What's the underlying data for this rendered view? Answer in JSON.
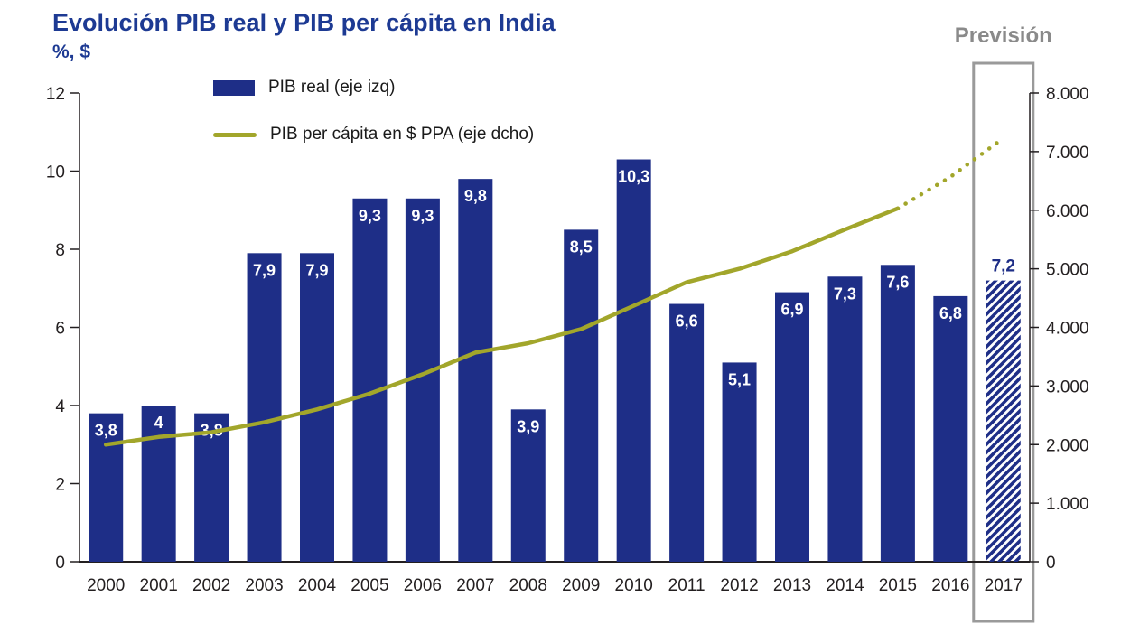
{
  "chart_data": {
    "type": "combo",
    "title": "Evolución PIB real y PIB per cápita en India",
    "subtitle": "%, $",
    "forecast": {
      "label": "Previsión",
      "category": "2017"
    },
    "legend_position": "top-left-inside",
    "grid": false,
    "categories": [
      "2000",
      "2001",
      "2002",
      "2003",
      "2004",
      "2005",
      "2006",
      "2007",
      "2008",
      "2009",
      "2010",
      "2011",
      "2012",
      "2013",
      "2014",
      "2015",
      "2016",
      "2017"
    ],
    "series": [
      {
        "name": "PIB real (eje izq)",
        "type": "bar",
        "axis": "left",
        "color": "#1e2e87",
        "values": [
          3.8,
          4,
          3.8,
          7.9,
          7.9,
          9.3,
          9.3,
          9.8,
          3.9,
          8.5,
          10.3,
          6.6,
          5.1,
          6.9,
          7.3,
          7.6,
          6.8,
          7.2
        ],
        "labels": [
          "3,8",
          "4",
          "3,8",
          "7,9",
          "7,9",
          "9,3",
          "9,3",
          "9,8",
          "3,9",
          "8,5",
          "10,3",
          "6,6",
          "5,1",
          "6,9",
          "7,3",
          "7,6",
          "6,8",
          "7,2"
        ],
        "forecast_index": 17
      },
      {
        "name": "PIB per cápita en $ PPA (eje dcho)",
        "type": "line",
        "axis": "right",
        "color": "#a2a62b",
        "values": [
          2000,
          2130,
          2210,
          2380,
          2600,
          2870,
          3200,
          3570,
          3730,
          3970,
          4370,
          4770,
          5000,
          5300,
          5670,
          6030,
          6570,
          7230
        ],
        "dotted_from_index": 15
      }
    ],
    "left_axis": {
      "min": 0,
      "max": 12,
      "ticks": [
        "0",
        "2",
        "4",
        "6",
        "8",
        "10",
        "12"
      ]
    },
    "right_axis": {
      "min": 0,
      "max": 8000,
      "ticks": [
        "0",
        "1.000",
        "2.000",
        "3.000",
        "4.000",
        "5.000",
        "6.000",
        "7.000",
        "8.000"
      ]
    },
    "colors": {
      "title": "#1d3a93",
      "forecast_label": "#8a8a8a",
      "forecast_box": "#9a9a9a",
      "axis": "#231f20",
      "bar_label": "#ffffff"
    }
  }
}
